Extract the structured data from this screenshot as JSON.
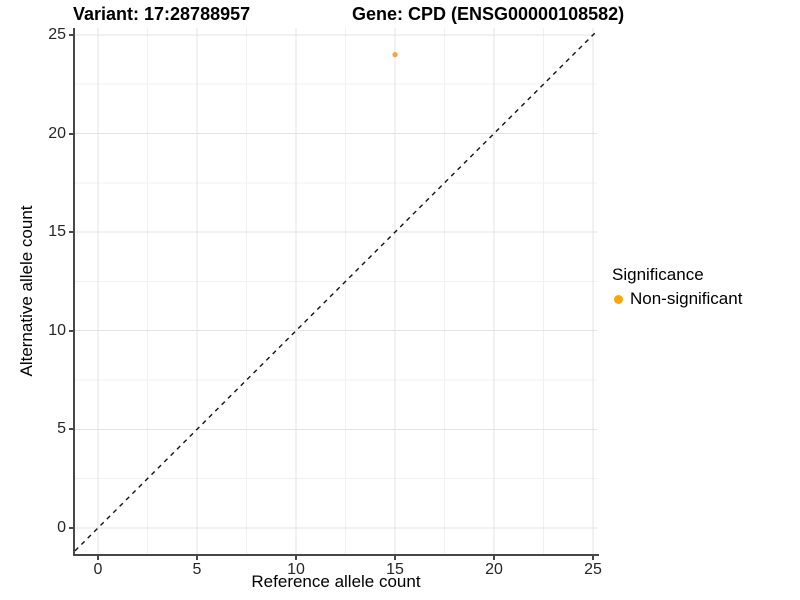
{
  "chart_data": {
    "type": "scatter",
    "titles": [
      "Variant: 17:28788957",
      "Gene: CPD (ENSG00000108582)"
    ],
    "xlabel": "Reference allele count",
    "ylabel": "Alternative allele count",
    "x_ticks": [
      0,
      5,
      10,
      15,
      20,
      25
    ],
    "y_ticks": [
      0,
      5,
      10,
      15,
      20,
      25
    ],
    "xlim": [
      -1.16,
      25.2
    ],
    "ylim": [
      -1.32,
      25.35
    ],
    "grid": "major+minor",
    "minor_grid_at_midpoints": true,
    "points": [
      {
        "x": 15,
        "y": 24,
        "series": "Non-significant",
        "color": "#F8A044"
      }
    ],
    "reference_line": {
      "slope": 1,
      "intercept": 0,
      "style": "dashed",
      "color": "#111111"
    },
    "legend": {
      "title": "Significance",
      "position": "right",
      "items": [
        {
          "label": "Non-significant",
          "color": "#FFA500"
        }
      ]
    }
  },
  "colors": {
    "major_grid": "#E3E3E3",
    "minor_grid": "#F0F0F0",
    "axis_line": "#474747",
    "accent_orange": "#FFA500"
  }
}
